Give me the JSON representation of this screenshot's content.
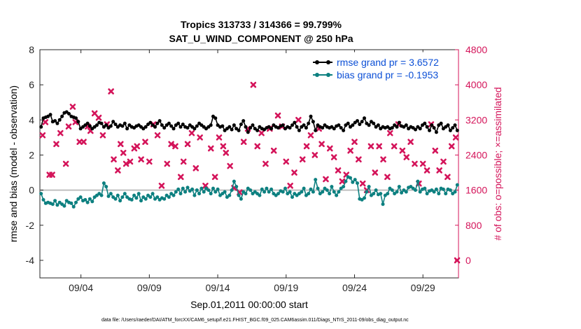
{
  "chart_data": {
    "type": "line",
    "title_line1": "Tropics 313733 / 314366 = 99.799%",
    "title_line2": "SAT_U_WIND_COMPONENT @ 250 hPa",
    "xlabel": "Sep.01,2011 00:00:00 start",
    "ylabel_left": "rmse and bias (model - observation)",
    "ylabel_right": "# of obs: o=possible; ×=assimilated",
    "footnote": "data file: /Users/raeder/DAI/ATM_forcXX/CAM6_setup/f.e21.FHIST_BGC.f09_025.CAM6assim.011/Diags_NTrS_2011-09/obs_diag_output.nc",
    "xlim": [
      1,
      31.6
    ],
    "ylim_left": [
      -5,
      8
    ],
    "ylim_right": [
      -400,
      4800
    ],
    "x_ticks": [
      4,
      9,
      14,
      19,
      24,
      29
    ],
    "x_tick_labels": [
      "09/04",
      "09/09",
      "09/14",
      "09/19",
      "09/24",
      "09/29"
    ],
    "y_left_ticks": [
      -4,
      -2,
      0,
      2,
      4,
      6,
      8
    ],
    "y_right_ticks": [
      0,
      800,
      1600,
      2400,
      3200,
      4000,
      4800
    ],
    "grid": false,
    "legend_position": "top-right",
    "colors": {
      "rmse": "#000000",
      "bias": "#0d8080",
      "obs": "#d4145a",
      "zero_line": "#bfbfbf",
      "legend_text": "#0b4fd6"
    },
    "series": [
      {
        "name": "rmse grand pr = 3.6572",
        "axis": "left",
        "values": [
          3.6,
          4.1,
          4.15,
          4.2,
          4.3,
          3.9,
          3.95,
          3.8,
          4.0,
          4.2,
          4.4,
          4.45,
          4.35,
          4.2,
          4.15,
          4.1,
          3.9,
          3.5,
          3.6,
          3.7,
          3.8,
          3.65,
          3.5,
          3.6,
          3.7,
          3.85,
          3.8,
          3.6,
          3.7,
          3.55,
          3.65,
          3.9,
          3.75,
          3.6,
          3.7,
          3.65,
          3.8,
          3.5,
          3.7,
          3.6,
          3.55,
          3.65,
          3.7,
          3.6,
          3.5,
          3.6,
          3.75,
          3.85,
          3.7,
          3.6,
          3.8,
          3.95,
          3.7,
          3.55,
          3.7,
          3.8,
          3.65,
          3.5,
          3.7,
          3.8,
          3.6,
          3.75,
          3.6,
          3.55,
          3.7,
          3.6,
          3.5,
          3.65,
          3.8,
          3.7,
          3.6,
          3.5,
          3.6,
          3.7,
          4.2,
          4.1,
          3.7,
          3.6,
          3.65,
          3.4,
          3.5,
          3.6,
          3.45,
          3.7,
          3.5,
          3.4,
          3.75,
          3.95,
          3.6,
          3.3,
          3.55,
          3.7,
          3.5,
          3.4,
          3.6,
          3.5,
          3.45,
          3.55,
          3.6,
          3.5,
          3.7,
          3.6,
          3.55,
          3.65,
          3.7,
          3.5,
          3.6,
          3.55,
          3.7,
          3.85,
          3.6,
          3.4,
          3.6,
          3.7,
          3.55,
          3.8,
          4.2,
          3.9,
          3.4,
          3.7,
          3.6,
          3.55,
          3.7,
          3.6,
          3.55,
          3.6,
          3.5,
          3.65,
          3.7,
          3.55,
          3.4,
          3.7,
          3.8,
          3.6,
          3.7,
          3.85,
          3.95,
          3.75,
          3.9,
          4.1,
          3.8,
          3.7,
          3.9,
          3.8,
          3.6,
          3.7,
          3.5,
          3.6,
          3.55,
          3.6,
          3.5,
          3.55,
          3.7,
          3.6,
          3.85,
          3.65,
          3.6,
          3.7,
          3.5,
          3.6,
          3.55,
          3.45,
          3.6,
          3.5,
          3.7,
          3.8,
          3.6,
          3.4,
          3.7,
          3.55,
          3.3,
          3.7,
          3.8,
          3.5,
          3.6,
          3.7,
          3.4,
          3.55,
          3.7,
          3.4
        ]
      },
      {
        "name": "bias grand pr = -0.1953",
        "axis": "left",
        "values": [
          -0.2,
          -0.55,
          -0.75,
          -0.7,
          -0.75,
          -0.8,
          -0.6,
          -0.85,
          -0.7,
          -0.8,
          -0.9,
          -0.6,
          -0.7,
          -0.75,
          -0.95,
          -0.7,
          -0.5,
          -0.4,
          -0.6,
          -0.55,
          -0.7,
          -0.5,
          -0.65,
          -0.4,
          -0.3,
          -0.2,
          -0.3,
          0.4,
          0.2,
          -0.35,
          -0.2,
          -0.4,
          -0.5,
          -0.3,
          -0.6,
          -0.4,
          -0.2,
          -0.4,
          -0.5,
          -0.55,
          -0.3,
          -0.45,
          -0.2,
          -0.6,
          -0.4,
          -0.5,
          -0.3,
          -0.4,
          -0.2,
          -0.5,
          -0.4,
          -0.55,
          -0.45,
          -0.5,
          -0.3,
          -0.4,
          -0.2,
          -0.3,
          -0.1,
          0.05,
          -0.2,
          0.1,
          -0.1,
          0.15,
          -0.05,
          0.05,
          -0.3,
          0.0,
          -0.2,
          0.1,
          -0.1,
          0.1,
          0.0,
          -0.2,
          0.1,
          -0.1,
          0.05,
          -0.3,
          -0.2,
          -0.1,
          -0.4,
          -0.3,
          0.0,
          0.5,
          0.2,
          -0.3,
          -0.5,
          -0.1,
          -0.2,
          0.1,
          0.0,
          -0.2,
          -0.1,
          -0.2,
          -0.3,
          0.05,
          -0.1,
          0.1,
          -0.1,
          0.05,
          -0.2,
          -0.3,
          -0.2,
          -0.05,
          -0.1,
          0.1,
          -0.2,
          -0.1,
          -0.4,
          -0.2,
          -0.3,
          -0.2,
          -0.1,
          0.1,
          -0.3,
          -0.2,
          0.05,
          -0.1,
          0.6,
          0.1,
          -0.2,
          -0.1,
          0.1,
          0.0,
          -0.2,
          0.2,
          -0.1,
          -0.3,
          -0.1,
          0.1,
          0.2,
          0.5,
          0.75,
          0.7,
          0.45,
          0.6,
          0.4,
          -0.5,
          -0.55,
          -0.45,
          -0.1,
          0.2,
          -0.3,
          -0.2,
          0.0,
          -0.25,
          -0.2,
          -0.8,
          -0.3,
          -0.2,
          0.1,
          0.0,
          -0.2,
          -0.1,
          0.2,
          -0.15,
          0.0,
          -0.1,
          0.15,
          0.2,
          0.1,
          0.0,
          0.5,
          -0.1,
          0.05,
          0.1,
          -0.2,
          -0.05,
          0.0,
          -0.1,
          0.05,
          -0.2,
          0.1,
          0.05,
          -0.2,
          0.05,
          0.0,
          -0.2,
          -0.1,
          0.3
        ]
      },
      {
        "name": "obs",
        "axis": "right",
        "x": [
          1.2,
          1.4,
          1.7,
          1.9,
          2.2,
          2.5,
          2.9,
          3.1,
          3.4,
          3.6,
          3.9,
          4.2,
          4.5,
          4.7,
          5.0,
          5.3,
          5.6,
          5.9,
          6.2,
          6.4,
          6.7,
          6.9,
          7.1,
          7.3,
          7.6,
          7.9,
          8.1,
          8.4,
          8.7,
          9.0,
          9.3,
          9.6,
          9.9,
          10.3,
          10.6,
          10.9,
          11.3,
          11.5,
          11.8,
          12.1,
          12.4,
          12.7,
          13.1,
          13.5,
          13.8,
          14.1,
          14.4,
          14.6,
          14.9,
          15.2,
          15.6,
          15.9,
          16.2,
          16.6,
          16.9,
          17.2,
          17.5,
          17.8,
          18.1,
          18.4,
          18.7,
          19.0,
          19.3,
          19.6,
          19.9,
          20.2,
          20.5,
          20.8,
          21.1,
          21.4,
          21.6,
          21.9,
          22.2,
          22.5,
          22.8,
          23.1,
          23.4,
          23.7,
          24.0,
          24.3,
          24.6,
          24.9,
          25.2,
          25.5,
          25.8,
          26.1,
          26.4,
          26.6,
          26.9,
          27.2,
          27.5,
          27.8,
          28.1,
          28.4,
          28.7,
          29.0,
          29.3,
          29.6,
          29.9,
          30.2,
          30.5,
          30.8,
          31.1,
          31.4,
          31.5
        ],
        "values": [
          2850,
          3150,
          1950,
          1950,
          2650,
          2900,
          2200,
          3050,
          3500,
          3150,
          2700,
          2700,
          3050,
          2950,
          3350,
          3250,
          2850,
          3100,
          3850,
          2300,
          2050,
          2650,
          2450,
          2200,
          2250,
          2550,
          2600,
          2300,
          2700,
          2250,
          3100,
          2850,
          1700,
          2200,
          2650,
          2600,
          1900,
          2250,
          2650,
          2900,
          2100,
          2800,
          1700,
          2550,
          1900,
          2800,
          2600,
          2450,
          2150,
          1650,
          1550,
          2700,
          3000,
          4000,
          2600,
          2900,
          2200,
          3000,
          2500,
          3300,
          3050,
          2250,
          1700,
          2000,
          3200,
          2300,
          2600,
          2850,
          2400,
          3000,
          2650,
          1850,
          2550,
          2350,
          2050,
          1800,
          1950,
          2500,
          2700,
          2300,
          1750,
          1600,
          2600,
          2000,
          2600,
          2300,
          1900,
          2900,
          2600,
          3100,
          2500,
          2350,
          2700,
          2200,
          1750,
          2200,
          2050,
          3100,
          2500,
          2050,
          2250,
          1900,
          2600,
          2800,
          0
        ]
      }
    ]
  }
}
